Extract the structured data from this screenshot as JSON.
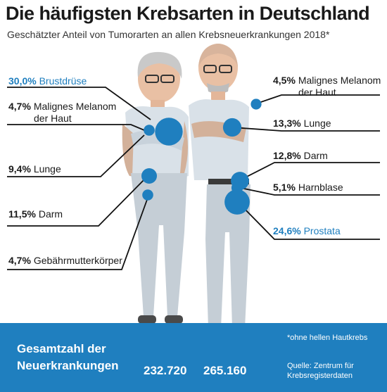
{
  "header": {
    "title": "Die häufigsten Krebsarten in Deutschland",
    "subtitle": "Geschätzter Anteil von Tumorarten an allen Krebsneuerkrankungen 2018*"
  },
  "colors": {
    "accent": "#1f7fbf",
    "text": "#1a1a1a",
    "bubble": "#1f7fbf"
  },
  "chart_data": [
    {
      "type": "bubble",
      "group": "Frauen",
      "categories": [
        "Brustdrüse",
        "Malignes Melanom der Haut",
        "Lunge",
        "Darm",
        "Gebährmutterkörper"
      ],
      "values": [
        30.0,
        4.7,
        9.4,
        11.5,
        4.7
      ],
      "labels": [
        "30,0%",
        "4,7%",
        "9,4%",
        "11,5%",
        "4,7%"
      ],
      "highlight": "Brustdrüse",
      "unit": "%"
    },
    {
      "type": "bubble",
      "group": "Männer",
      "categories": [
        "Malignes Melanom der Haut",
        "Lunge",
        "Darm",
        "Harnblase",
        "Prostata"
      ],
      "values": [
        4.5,
        13.3,
        12.8,
        5.1,
        24.6
      ],
      "labels": [
        "4,5%",
        "13,3%",
        "12,8%",
        "5,1%",
        "24,6%"
      ],
      "highlight": "Prostata",
      "unit": "%"
    }
  ],
  "labels": {
    "women": [
      {
        "pct": "30,0%",
        "name": "Brustdrüse"
      },
      {
        "pct": "4,7%",
        "name": "Malignes Melanom",
        "name2": "der Haut"
      },
      {
        "pct": "9,4%",
        "name": "Lunge"
      },
      {
        "pct": "11,5%",
        "name": "Darm"
      },
      {
        "pct": "4,7%",
        "name": "Gebährmutterkörper"
      }
    ],
    "men": [
      {
        "pct": "4,5%",
        "name": "Malignes Melanom",
        "name2": "der Haut"
      },
      {
        "pct": "13,3%",
        "name": "Lunge"
      },
      {
        "pct": "12,8%",
        "name": "Darm"
      },
      {
        "pct": "5,1%",
        "name": "Harnblase"
      },
      {
        "pct": "24,6%",
        "name": "Prostata"
      }
    ]
  },
  "footer": {
    "label_line1": "Gesamtzahl der",
    "label_line2": "Neuerkrankungen",
    "total_women": "232.720",
    "total_men": "265.160",
    "footnote": "*ohne hellen Hautkrebs",
    "source_line1": "Quelle: Zentrum für",
    "source_line2": "Krebsregisterdaten"
  }
}
